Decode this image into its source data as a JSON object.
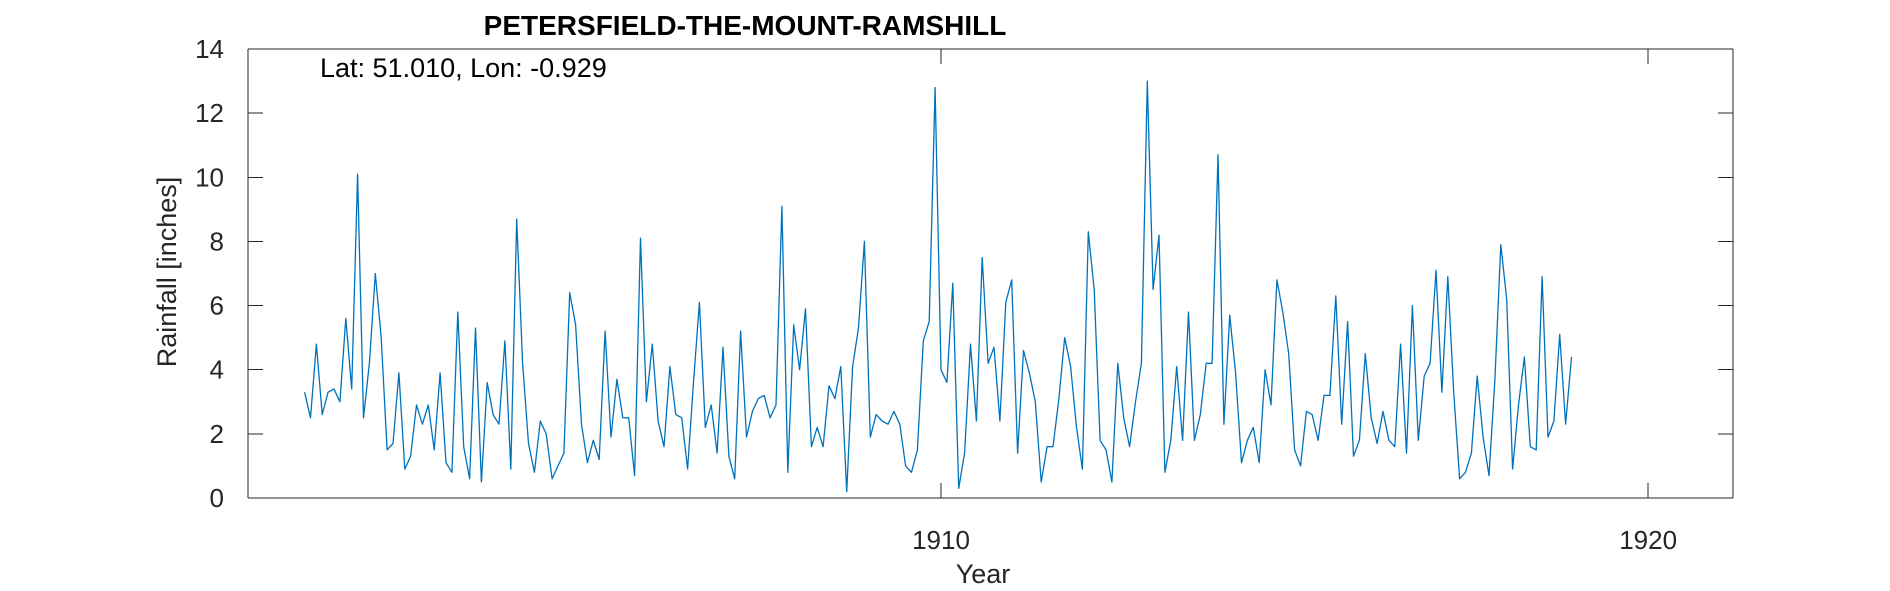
{
  "chart_data": {
    "type": "line",
    "title": "PETERSFIELD-THE-MOUNT-RAMSHILL",
    "annotation": "Lat: 51.010, Lon: -0.929",
    "xlabel": "Year",
    "ylabel": "Rainfall [inches]",
    "xlim": [
      1900.2,
      1921.2
    ],
    "ylim": [
      0,
      14
    ],
    "xticks": [
      1910,
      1920
    ],
    "xtick_labels": [
      "1910",
      "1920"
    ],
    "yticks": [
      0,
      2,
      4,
      6,
      8,
      10,
      12,
      14
    ],
    "ytick_labels": [
      "0",
      "2",
      "4",
      "6",
      "8",
      "10",
      "12",
      "14"
    ],
    "grid": false,
    "legend": "none",
    "line_color": "#0072BD",
    "x_start": "1901-01",
    "frequency": "monthly",
    "series": [
      {
        "values": [
          3.3,
          2.5,
          4.8,
          2.6,
          3.3,
          3.4,
          3.0,
          5.6,
          3.4,
          10.1,
          2.5,
          4.2,
          7.0,
          5.0,
          1.5,
          1.7,
          3.9,
          0.9,
          1.3,
          2.9,
          2.3,
          2.9,
          1.5,
          3.9,
          1.1,
          0.8,
          5.8,
          1.6,
          0.6,
          5.3,
          0.5,
          3.6,
          2.6,
          2.3,
          4.9,
          0.9,
          8.7,
          4.2,
          1.7,
          0.8,
          2.4,
          2.0,
          0.6,
          1.0,
          1.4,
          6.4,
          5.4,
          2.3,
          1.1,
          1.8,
          1.2,
          5.2,
          1.9,
          3.7,
          2.5,
          2.5,
          0.7,
          8.1,
          3.0,
          4.8,
          2.4,
          1.6,
          4.1,
          2.6,
          2.5,
          0.9,
          3.6,
          6.1,
          2.2,
          2.9,
          1.4,
          4.7,
          1.3,
          0.6,
          5.2,
          1.9,
          2.7,
          3.1,
          3.2,
          2.5,
          2.9,
          9.1,
          0.8,
          5.4,
          4.0,
          5.9,
          1.6,
          2.2,
          1.6,
          3.5,
          3.1,
          4.1,
          0.2,
          4.1,
          5.3,
          8.0,
          1.9,
          2.6,
          2.4,
          2.3,
          2.7,
          2.3,
          1.0,
          0.8,
          1.5,
          4.9,
          5.5,
          12.8,
          4.0,
          3.6,
          6.7,
          0.3,
          1.4,
          4.8,
          2.4,
          7.5,
          4.2,
          4.7,
          2.4,
          6.1,
          6.8,
          1.4,
          4.6,
          3.9,
          3.0,
          0.5,
          1.6,
          1.6,
          3.1,
          5.0,
          4.1,
          2.2,
          0.9,
          8.3,
          6.5,
          1.8,
          1.5,
          0.5,
          4.2,
          2.5,
          1.6,
          3.0,
          4.2,
          13.0,
          6.5,
          8.2,
          0.8,
          1.8,
          4.1,
          1.8,
          5.8,
          1.8,
          2.6,
          4.2,
          4.2,
          10.7,
          2.3,
          5.7,
          3.9,
          1.1,
          1.8,
          2.2,
          1.1,
          4.0,
          2.9,
          6.8,
          5.8,
          4.5,
          1.5,
          1.0,
          2.7,
          2.6,
          1.8,
          3.2,
          3.2,
          6.3,
          2.3,
          5.5,
          1.3,
          1.8,
          4.5,
          2.5,
          1.7,
          2.7,
          1.8,
          1.6,
          4.8,
          1.4,
          6.0,
          1.8,
          3.8,
          4.2,
          7.1,
          3.3,
          6.9,
          3.3,
          0.6,
          0.8,
          1.4,
          3.8,
          1.9,
          0.7,
          3.7,
          7.9,
          6.2,
          0.9,
          2.9,
          4.4,
          1.6,
          1.5,
          6.9,
          1.9,
          2.4,
          5.1,
          2.3,
          4.4
        ]
      }
    ]
  }
}
